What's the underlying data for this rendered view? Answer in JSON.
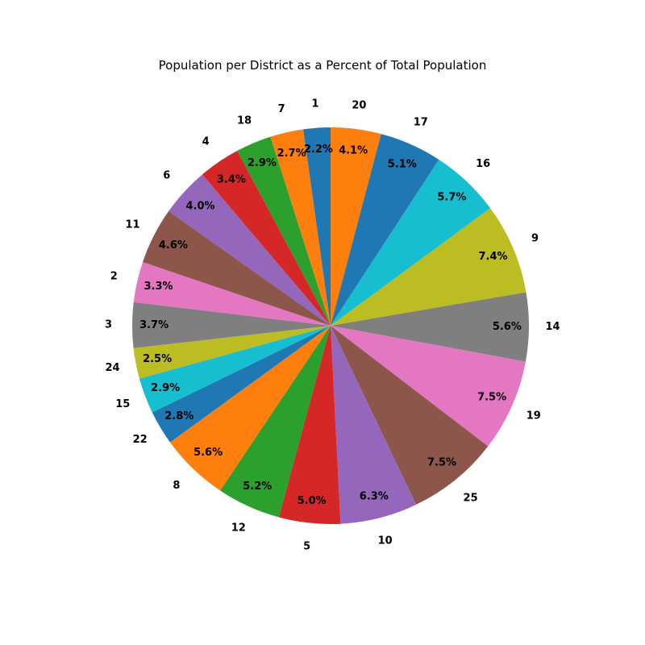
{
  "chart_data": {
    "type": "pie",
    "title": "Population per District as a Percent of Total Population",
    "start_angle_deg": 90,
    "direction": "clockwise",
    "slices": [
      {
        "label": "20",
        "value": 4.1,
        "pct": "4.1%",
        "color": "#ff7f0e"
      },
      {
        "label": "17",
        "value": 5.1,
        "pct": "5.1%",
        "color": "#1f77b4"
      },
      {
        "label": "16",
        "value": 5.7,
        "pct": "5.7%",
        "color": "#17becf"
      },
      {
        "label": "9",
        "value": 7.4,
        "pct": "7.4%",
        "color": "#bcbd22"
      },
      {
        "label": "14",
        "value": 5.6,
        "pct": "5.6%",
        "color": "#7f7f7f"
      },
      {
        "label": "19",
        "value": 7.5,
        "pct": "7.5%",
        "color": "#e377c2"
      },
      {
        "label": "25",
        "value": 7.5,
        "pct": "7.5%",
        "color": "#8c564b"
      },
      {
        "label": "10",
        "value": 6.3,
        "pct": "6.3%",
        "color": "#9467bd"
      },
      {
        "label": "5",
        "value": 5.0,
        "pct": "5.0%",
        "color": "#d62728"
      },
      {
        "label": "12",
        "value": 5.2,
        "pct": "5.2%",
        "color": "#2ca02c"
      },
      {
        "label": "8",
        "value": 5.6,
        "pct": "5.6%",
        "color": "#ff7f0e"
      },
      {
        "label": "22",
        "value": 2.8,
        "pct": "2.8%",
        "color": "#1f77b4"
      },
      {
        "label": "15",
        "value": 2.9,
        "pct": "2.9%",
        "color": "#17becf"
      },
      {
        "label": "24",
        "value": 2.5,
        "pct": "2.5%",
        "color": "#bcbd22"
      },
      {
        "label": "3",
        "value": 3.7,
        "pct": "3.7%",
        "color": "#7f7f7f"
      },
      {
        "label": "2",
        "value": 3.3,
        "pct": "3.3%",
        "color": "#e377c2"
      },
      {
        "label": "11",
        "value": 4.6,
        "pct": "4.6%",
        "color": "#8c564b"
      },
      {
        "label": "6",
        "value": 4.0,
        "pct": "4.0%",
        "color": "#9467bd"
      },
      {
        "label": "4",
        "value": 3.4,
        "pct": "3.4%",
        "color": "#d62728"
      },
      {
        "label": "18",
        "value": 2.9,
        "pct": "2.9%",
        "color": "#2ca02c"
      },
      {
        "label": "7",
        "value": 2.7,
        "pct": "2.7%",
        "color": "#ff7f0e"
      },
      {
        "label": "1",
        "value": 2.2,
        "pct": "2.2%",
        "color": "#1f77b4"
      }
    ]
  }
}
